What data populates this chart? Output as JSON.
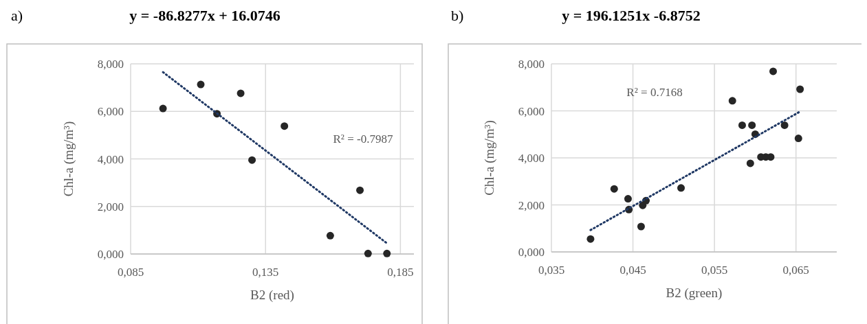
{
  "chart_data": [
    {
      "type": "scatter",
      "title": "y = -86.8277x + 16.0746",
      "xlabel": "B2 (red)",
      "ylabel": "Chl-a (mg/m³)",
      "annotations": [
        "a)",
        "R² = -0.7987"
      ],
      "xlim": [
        0.085,
        0.19
      ],
      "xticks": [
        {
          "value": 0.085,
          "label": "0,085"
        },
        {
          "value": 0.135,
          "label": "0,135"
        },
        {
          "value": 0.185,
          "label": "0,185"
        }
      ],
      "ylim": [
        0,
        8
      ],
      "yticks": [
        {
          "value": 0,
          "label": "0,000"
        },
        {
          "value": 2,
          "label": "2,000"
        },
        {
          "value": 4,
          "label": "4,000"
        },
        {
          "value": 6,
          "label": "6,000"
        },
        {
          "value": 8,
          "label": "8,000"
        }
      ],
      "grid": true,
      "series": [
        {
          "marker": "circle",
          "color": "#262626",
          "x": [
            0.097,
            0.111,
            0.117,
            0.1258,
            0.13,
            0.142,
            0.159,
            0.17,
            0.173,
            0.18
          ],
          "values": [
            6.12,
            7.13,
            5.9,
            6.76,
            3.95,
            5.38,
            0.77,
            2.68,
            0.02,
            0.02
          ]
        },
        {
          "type": "line",
          "color": "#1f3864",
          "line_style": "dotted",
          "x": [
            0.097,
            0.18
          ],
          "values": [
            7.65,
            0.45
          ]
        }
      ]
    },
    {
      "type": "scatter",
      "title": "y = 196.1251x -6.8752",
      "xlabel": "B2 (green)",
      "ylabel": "Chl-a (mg/m³)",
      "annotations": [
        "b)",
        "R² = 0.7168"
      ],
      "xlim": [
        0.035,
        0.07
      ],
      "xticks": [
        {
          "value": 0.035,
          "label": "0,035"
        },
        {
          "value": 0.045,
          "label": "0,045"
        },
        {
          "value": 0.055,
          "label": "0,055"
        },
        {
          "value": 0.065,
          "label": "0,065"
        }
      ],
      "ylim": [
        0,
        8
      ],
      "yticks": [
        {
          "value": 0,
          "label": "0,000"
        },
        {
          "value": 2,
          "label": "2,000"
        },
        {
          "value": 4,
          "label": "4,000"
        },
        {
          "value": 6,
          "label": "6,000"
        },
        {
          "value": 8,
          "label": "8,000"
        }
      ],
      "grid": true,
      "series": [
        {
          "marker": "circle",
          "color": "#262626",
          "x": [
            0.0398,
            0.0427,
            0.0444,
            0.0445,
            0.046,
            0.0462,
            0.0466,
            0.0509,
            0.0572,
            0.0584,
            0.0594,
            0.0596,
            0.06,
            0.0607,
            0.0613,
            0.0619,
            0.0622,
            0.0636,
            0.0653,
            0.0655
          ],
          "values": [
            0.55,
            2.68,
            2.26,
            1.8,
            1.08,
            1.98,
            2.18,
            2.72,
            6.43,
            5.39,
            3.77,
            5.39,
            5.01,
            4.04,
            4.04,
            4.04,
            7.68,
            5.39,
            4.83,
            6.92
          ]
        },
        {
          "type": "line",
          "color": "#1f3864",
          "line_style": "dotted",
          "x": [
            0.0398,
            0.0655
          ],
          "values": [
            0.93,
            5.97
          ]
        }
      ]
    }
  ]
}
